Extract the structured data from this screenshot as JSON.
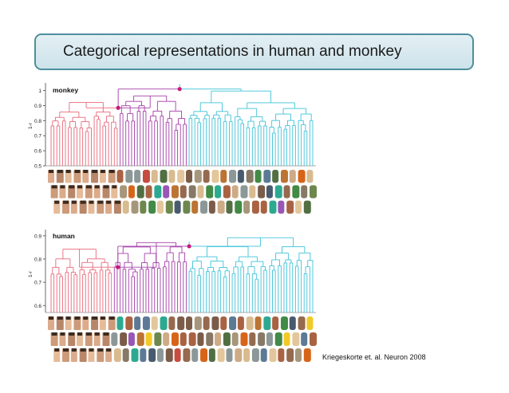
{
  "title": "Categorical representations in human and monkey",
  "citation": "Kriegeskorte et. al. Neuron 2008",
  "colors": {
    "animate_faces": "#e8697a",
    "animate_bodies": "#a43da8",
    "inanimate": "#3ec2d9",
    "node": "#c8187a",
    "axis": "#444444"
  },
  "panels": [
    {
      "id": "monkey",
      "label": "monkey",
      "ylabel": "1-r",
      "ticks": [
        "1",
        "0.9",
        "0.8",
        "0.7",
        "0.6",
        "0.5"
      ],
      "tick_values": [
        1.0,
        0.9,
        0.8,
        0.7,
        0.6,
        0.5
      ],
      "ylim": [
        0.5,
        1.04
      ],
      "leaves": 92,
      "groups": [
        {
          "name": "faces",
          "color_key": "animate_faces",
          "count": 24
        },
        {
          "name": "bodies",
          "color_key": "animate_bodies",
          "count": 24
        },
        {
          "name": "inanimate",
          "color_key": "inanimate",
          "count": 44
        }
      ],
      "marked_nodes": [
        1.01,
        0.885
      ]
    },
    {
      "id": "human",
      "label": "human",
      "ylabel": "1-r",
      "ticks": [
        "0.9",
        "0.8",
        "0.7",
        "0.6"
      ],
      "tick_values": [
        0.9,
        0.8,
        0.7,
        0.6
      ],
      "ylim": [
        0.57,
        0.92
      ],
      "leaves": 92,
      "groups": [
        {
          "name": "faces",
          "color_key": "animate_faces",
          "count": 22
        },
        {
          "name": "bodies",
          "color_key": "animate_bodies",
          "count": 26
        },
        {
          "name": "inanimate",
          "color_key": "inanimate",
          "count": 44
        }
      ],
      "marked_nodes": [
        0.855,
        0.765
      ]
    }
  ]
}
